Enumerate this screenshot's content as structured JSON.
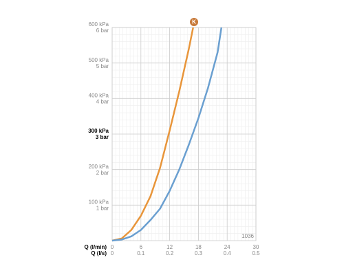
{
  "chart_data": {
    "type": "line",
    "xlabel": "Q (l/min)",
    "x2label": "Q (l/s)",
    "xlim": [
      0,
      30
    ],
    "xticks": [
      0,
      6,
      12,
      18,
      24,
      30
    ],
    "x2lim": [
      0,
      0.5
    ],
    "x2ticks": [
      0,
      0.1,
      0.2,
      0.3,
      0.4,
      0.5
    ],
    "ylim": [
      0,
      600
    ],
    "yticks": [
      {
        "value": 100,
        "label": "100 kPa"
      },
      {
        "value": 200,
        "label": "200 kPa"
      },
      {
        "value": 300,
        "label": "300 kPa"
      },
      {
        "value": 400,
        "label": "400 kPa"
      },
      {
        "value": 500,
        "label": "500 kPa"
      },
      {
        "value": 600,
        "label": "600 kPa"
      }
    ],
    "y2lim": [
      0,
      6
    ],
    "y2ticks": [
      {
        "value": 1,
        "label": "1 bar"
      },
      {
        "value": 2,
        "label": "2 bar"
      },
      {
        "value": 3,
        "label": "3 bar"
      },
      {
        "value": 4,
        "label": "4 bar"
      },
      {
        "value": 5,
        "label": "5 bar"
      },
      {
        "value": 6,
        "label": "6 bar"
      }
    ],
    "bold_ytick": 300,
    "grid": true,
    "minor_grid": true,
    "annotation": "1036",
    "series": [
      {
        "name": null,
        "color": "#e8953a",
        "x": [
          0,
          2,
          4,
          6,
          8,
          10,
          12,
          14,
          16,
          16.9
        ],
        "values": [
          0,
          6,
          30,
          70,
          125,
          205,
          310,
          420,
          540,
          600
        ]
      },
      {
        "name": null,
        "color": "#6a9fd0",
        "x": [
          0,
          2,
          4,
          6,
          8,
          10,
          12,
          14,
          16,
          18,
          20,
          22,
          22.8
        ],
        "values": [
          0,
          3,
          12,
          30,
          58,
          90,
          140,
          200,
          270,
          345,
          430,
          530,
          600
        ]
      }
    ]
  }
}
